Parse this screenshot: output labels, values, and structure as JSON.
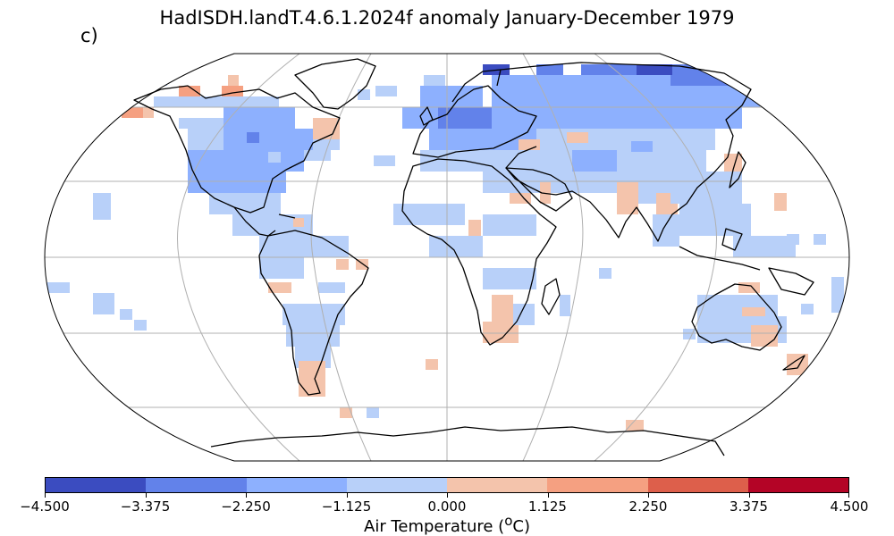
{
  "title": "HadISDH.landT.4.6.1.2024f anomaly January-December 1979",
  "panel_label": "c)",
  "colorbar": {
    "label": "Air Temperature (",
    "label_sup": "o",
    "label_end": "C)",
    "ticks": [
      "−4.500",
      "−3.375",
      "−2.250",
      "−1.125",
      "0.000",
      "1.125",
      "2.250",
      "3.375",
      "4.500"
    ],
    "tick_values": [
      -4.5,
      -3.375,
      -2.25,
      -1.125,
      0.0,
      1.125,
      2.25,
      3.375,
      4.5
    ],
    "colors": [
      "#3b4cc0",
      "#6282ea",
      "#8db0fe",
      "#b8d0f9",
      "#f4c4ac",
      "#f5a081",
      "#dd5f4b",
      "#b40426"
    ]
  },
  "map": {
    "projection": "Robinson",
    "gridlines": true,
    "ocean_color": "#ffffff",
    "coastline_color": "#000000",
    "gridline_color": "#b0b0b0"
  }
}
